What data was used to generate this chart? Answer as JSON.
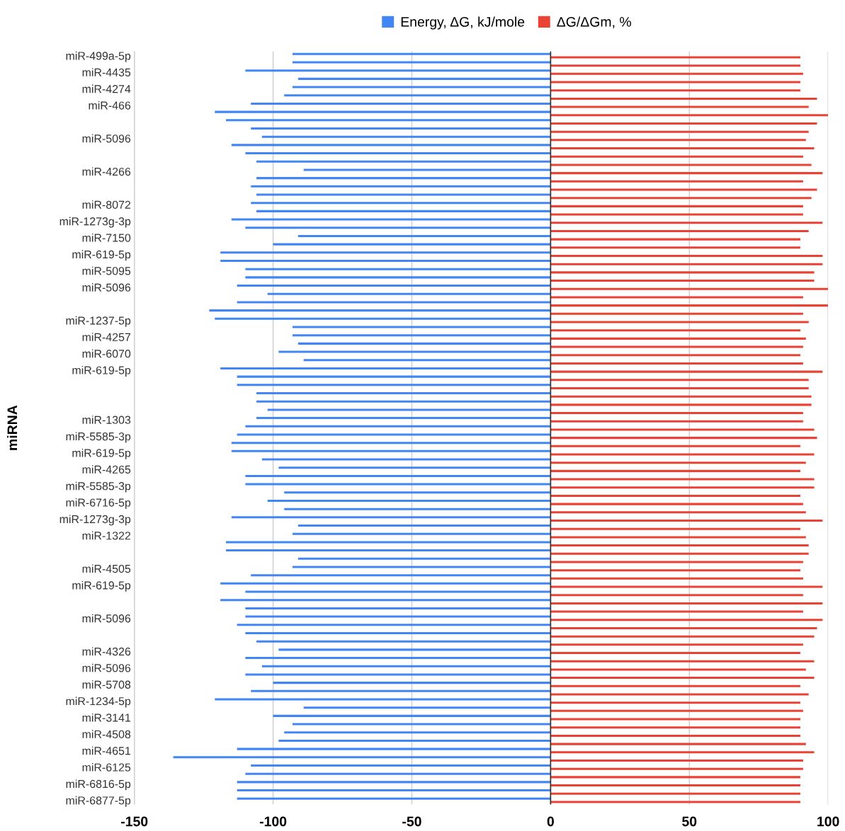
{
  "chart_data": {
    "type": "bar",
    "orientation": "horizontal",
    "ylabel": "miRNA",
    "categories": [
      "miR-499a-5p",
      null,
      "miR-4435",
      null,
      "miR-4274",
      null,
      "miR-466",
      null,
      null,
      null,
      "miR-5096",
      null,
      null,
      null,
      "miR-4266",
      null,
      null,
      null,
      "miR-8072",
      null,
      "miR-1273g-3p",
      null,
      "miR-7150",
      null,
      "miR-619-5p",
      null,
      "miR-5095",
      null,
      "miR-5096",
      null,
      null,
      null,
      "miR-1237-5p",
      null,
      "miR-4257",
      null,
      "miR-6070",
      null,
      "miR-619-5p",
      null,
      null,
      null,
      null,
      null,
      "miR-1303",
      null,
      "miR-5585-3p",
      null,
      "miR-619-5p",
      null,
      "miR-4265",
      null,
      "miR-5585-3p",
      null,
      "miR-6716-5p",
      null,
      "miR-1273g-3p",
      null,
      "miR-1322",
      null,
      null,
      null,
      "miR-4505",
      null,
      "miR-619-5p",
      null,
      null,
      null,
      "miR-5096",
      null,
      null,
      null,
      "miR-4326",
      null,
      "miR-5096",
      null,
      "miR-5708",
      null,
      "miR-1234-5p",
      null,
      "miR-3141",
      null,
      "miR-4508",
      null,
      "miR-4651",
      null,
      "miR-6125",
      null,
      "miR-6816-5p",
      null,
      "miR-6877-5p"
    ],
    "series": [
      {
        "name": "Energy, ΔG, kJ/mole",
        "color": "#4285f4",
        "values": [
          -93,
          -93,
          -110,
          -91,
          -93,
          -96,
          -108,
          -121,
          -117,
          -108,
          -104,
          -115,
          -110,
          -106,
          -89,
          -106,
          -108,
          -106,
          -108,
          -106,
          -115,
          -110,
          -91,
          -100,
          -119,
          -119,
          -110,
          -110,
          -113,
          -102,
          -113,
          -123,
          -121,
          -93,
          -93,
          -91,
          -98,
          -89,
          -119,
          -113,
          -113,
          -106,
          -106,
          -102,
          -106,
          -110,
          -113,
          -115,
          -115,
          -104,
          -98,
          -110,
          -110,
          -96,
          -102,
          -96,
          -115,
          -91,
          -93,
          -117,
          -117,
          -91,
          -93,
          -108,
          -119,
          -110,
          -119,
          -110,
          -110,
          -113,
          -110,
          -106,
          -98,
          -110,
          -104,
          -110,
          -100,
          -108,
          -121,
          -89,
          -100,
          -93,
          -96,
          -98,
          -113,
          -136,
          -108,
          -110,
          -113,
          -113,
          -113
        ]
      },
      {
        "name": "ΔG/ΔGm, %",
        "color": "#ea4335",
        "values": [
          90,
          90,
          91,
          90,
          90,
          96,
          93,
          100,
          96,
          93,
          92,
          95,
          91,
          94,
          98,
          91,
          96,
          94,
          91,
          91,
          98,
          93,
          90,
          90,
          98,
          98,
          95,
          95,
          100,
          91,
          100,
          91,
          93,
          90,
          92,
          91,
          90,
          91,
          98,
          93,
          93,
          94,
          94,
          91,
          91,
          95,
          96,
          90,
          95,
          92,
          90,
          95,
          95,
          90,
          91,
          92,
          98,
          90,
          92,
          93,
          93,
          91,
          90,
          91,
          98,
          91,
          98,
          91,
          98,
          96,
          95,
          91,
          90,
          95,
          92,
          95,
          90,
          93,
          90,
          91,
          90,
          90,
          90,
          92,
          95,
          91,
          91,
          90,
          90,
          90,
          90
        ]
      }
    ],
    "xlim": [
      -150,
      100
    ],
    "xticks": [
      -150,
      -100,
      -50,
      0,
      50,
      100
    ],
    "grid": "x",
    "legend": "top"
  }
}
